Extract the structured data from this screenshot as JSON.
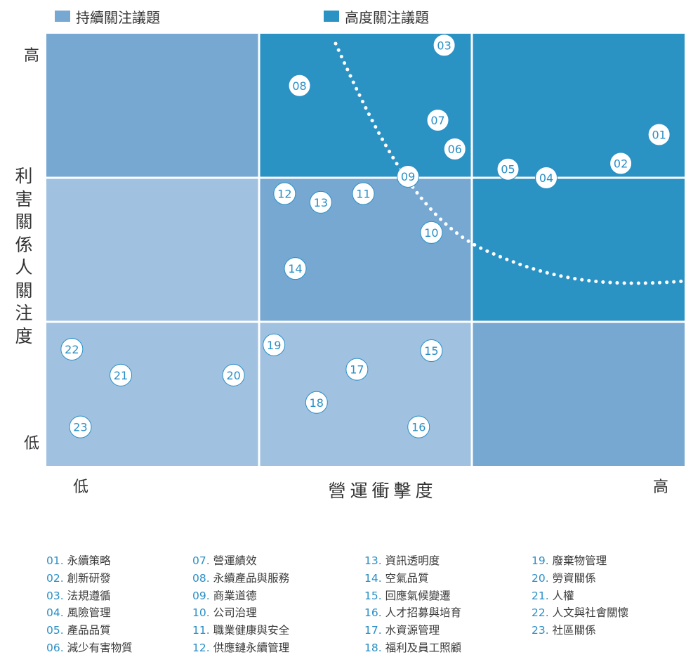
{
  "legend": [
    {
      "label": "持續關注議題",
      "color": "#77a8d2"
    },
    {
      "label": "高度關注議題",
      "color": "#2b92c4"
    }
  ],
  "y_axis": {
    "title": "利害關係人關注度",
    "high": "高",
    "low": "低"
  },
  "x_axis": {
    "title": "營運衝擊度",
    "high": "高",
    "low": "低"
  },
  "grid_colors": [
    [
      "#77a8d2",
      "#2b92c4",
      "#2b92c4"
    ],
    [
      "#a0c2e0",
      "#77a8d2",
      "#2b92c4"
    ],
    [
      "#a0c2e0",
      "#a0c2e0",
      "#77a8d2"
    ]
  ],
  "issues_plotted": [
    {
      "id": "01",
      "impact": 2.88,
      "concern": 2.3
    },
    {
      "id": "02",
      "impact": 2.7,
      "concern": 2.1
    },
    {
      "id": "03",
      "impact": 1.87,
      "concern": 2.92
    },
    {
      "id": "04",
      "impact": 2.35,
      "concern": 2.0
    },
    {
      "id": "05",
      "impact": 2.17,
      "concern": 2.06
    },
    {
      "id": "06",
      "impact": 1.92,
      "concern": 2.2
    },
    {
      "id": "07",
      "impact": 1.84,
      "concern": 2.4
    },
    {
      "id": "08",
      "impact": 1.19,
      "concern": 2.64
    },
    {
      "id": "09",
      "impact": 1.7,
      "concern": 2.01
    },
    {
      "id": "10",
      "impact": 1.81,
      "concern": 1.62
    },
    {
      "id": "11",
      "impact": 1.49,
      "concern": 1.89
    },
    {
      "id": "12",
      "impact": 1.12,
      "concern": 1.89
    },
    {
      "id": "13",
      "impact": 1.29,
      "concern": 1.83
    },
    {
      "id": "14",
      "impact": 1.17,
      "concern": 1.37
    },
    {
      "id": "15",
      "impact": 1.81,
      "concern": 0.8
    },
    {
      "id": "16",
      "impact": 1.75,
      "concern": 0.27
    },
    {
      "id": "17",
      "impact": 1.46,
      "concern": 0.67
    },
    {
      "id": "18",
      "impact": 1.27,
      "concern": 0.44
    },
    {
      "id": "19",
      "impact": 1.07,
      "concern": 0.84
    },
    {
      "id": "20",
      "impact": 0.88,
      "concern": 0.63
    },
    {
      "id": "21",
      "impact": 0.35,
      "concern": 0.63
    },
    {
      "id": "22",
      "impact": 0.12,
      "concern": 0.81
    },
    {
      "id": "23",
      "impact": 0.16,
      "concern": 0.27
    }
  ],
  "issue_list": [
    [
      "01. 永續策略",
      "02. 創新研發",
      "03. 法規遵循",
      "04. 風險管理",
      "05. 產品品質",
      "06. 減少有害物質"
    ],
    [
      "07. 營運績效",
      "08. 永續產品與服務",
      "09. 商業道德",
      "10. 公司治理",
      "11. 職業健康與安全",
      "12. 供應鏈永續管理"
    ],
    [
      "13. 資訊透明度",
      "14. 空氣品質",
      "15. 回應氣候變遷",
      "16. 人才招募與培育",
      "17. 水資源管理",
      "18. 福利及員工照顧"
    ],
    [
      "19. 廢棄物管理",
      "20. 勞資關係",
      "21. 人權",
      "22. 人文與社會關懷",
      "23. 社區關係"
    ]
  ]
}
